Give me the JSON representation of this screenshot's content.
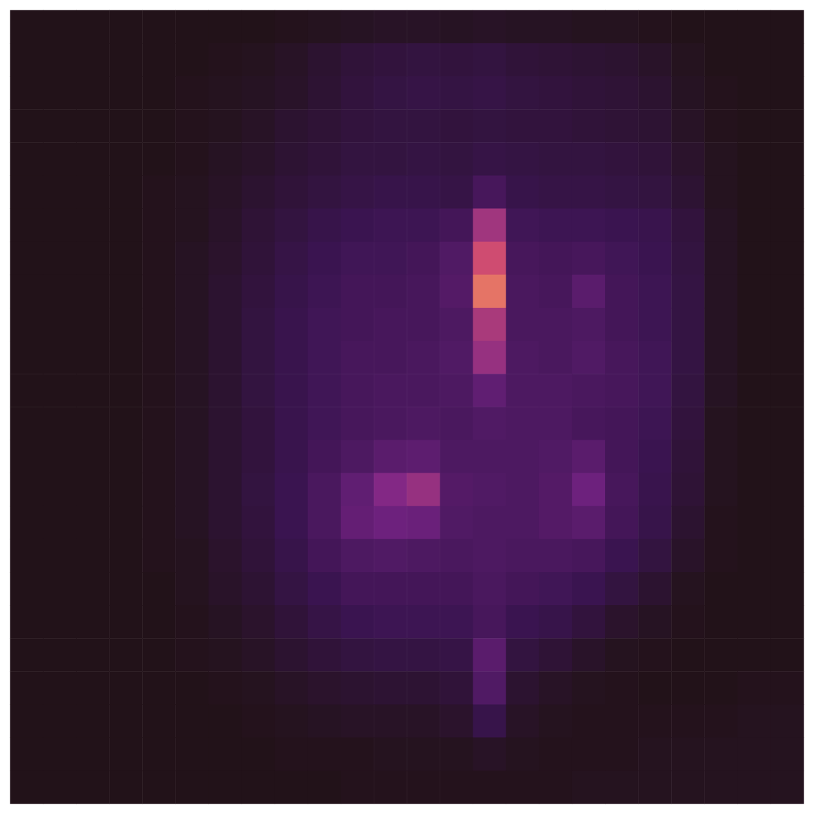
{
  "chart_data": {
    "type": "heatmap",
    "tick_labels": false,
    "zlim": [
      0,
      1
    ],
    "cells": [
      [
        0.03,
        0.03,
        0.03,
        0.03,
        0.03,
        0.03,
        0.03,
        0.03,
        0.04,
        0.05,
        0.06,
        0.07,
        0.07,
        0.06,
        0.07,
        0.06,
        0.06,
        0.05,
        0.05,
        0.04,
        0.03,
        0.03,
        0.03,
        0.03
      ],
      [
        0.03,
        0.03,
        0.03,
        0.03,
        0.03,
        0.03,
        0.04,
        0.05,
        0.07,
        0.1,
        0.13,
        0.14,
        0.15,
        0.14,
        0.15,
        0.13,
        0.12,
        0.11,
        0.1,
        0.08,
        0.05,
        0.03,
        0.03,
        0.03
      ],
      [
        0.03,
        0.03,
        0.03,
        0.03,
        0.03,
        0.04,
        0.05,
        0.06,
        0.08,
        0.11,
        0.14,
        0.16,
        0.17,
        0.16,
        0.17,
        0.15,
        0.14,
        0.13,
        0.12,
        0.1,
        0.06,
        0.04,
        0.03,
        0.03
      ],
      [
        0.03,
        0.03,
        0.03,
        0.03,
        0.03,
        0.04,
        0.05,
        0.07,
        0.1,
        0.12,
        0.14,
        0.15,
        0.15,
        0.14,
        0.15,
        0.14,
        0.14,
        0.13,
        0.12,
        0.11,
        0.07,
        0.04,
        0.03,
        0.03
      ],
      [
        0.03,
        0.03,
        0.03,
        0.03,
        0.03,
        0.04,
        0.06,
        0.08,
        0.11,
        0.13,
        0.15,
        0.15,
        0.16,
        0.15,
        0.17,
        0.16,
        0.15,
        0.15,
        0.14,
        0.13,
        0.09,
        0.05,
        0.03,
        0.03
      ],
      [
        0.03,
        0.03,
        0.03,
        0.03,
        0.04,
        0.05,
        0.07,
        0.1,
        0.13,
        0.15,
        0.17,
        0.18,
        0.18,
        0.17,
        0.24,
        0.18,
        0.17,
        0.17,
        0.16,
        0.15,
        0.11,
        0.05,
        0.03,
        0.03
      ],
      [
        0.03,
        0.03,
        0.03,
        0.03,
        0.04,
        0.05,
        0.08,
        0.12,
        0.15,
        0.18,
        0.2,
        0.21,
        0.21,
        0.23,
        0.48,
        0.22,
        0.21,
        0.21,
        0.2,
        0.19,
        0.14,
        0.06,
        0.03,
        0.03
      ],
      [
        0.03,
        0.03,
        0.03,
        0.03,
        0.04,
        0.06,
        0.09,
        0.13,
        0.17,
        0.2,
        0.22,
        0.22,
        0.23,
        0.27,
        0.58,
        0.24,
        0.23,
        0.24,
        0.22,
        0.2,
        0.15,
        0.06,
        0.03,
        0.03
      ],
      [
        0.03,
        0.03,
        0.03,
        0.03,
        0.04,
        0.06,
        0.1,
        0.14,
        0.18,
        0.21,
        0.23,
        0.23,
        0.24,
        0.28,
        0.68,
        0.25,
        0.24,
        0.3,
        0.23,
        0.21,
        0.16,
        0.06,
        0.03,
        0.03
      ],
      [
        0.03,
        0.03,
        0.03,
        0.03,
        0.04,
        0.06,
        0.1,
        0.15,
        0.19,
        0.22,
        0.23,
        0.24,
        0.24,
        0.26,
        0.5,
        0.25,
        0.25,
        0.26,
        0.23,
        0.21,
        0.16,
        0.06,
        0.03,
        0.03
      ],
      [
        0.03,
        0.03,
        0.03,
        0.03,
        0.04,
        0.06,
        0.1,
        0.15,
        0.19,
        0.22,
        0.24,
        0.24,
        0.25,
        0.27,
        0.46,
        0.26,
        0.25,
        0.27,
        0.24,
        0.22,
        0.16,
        0.06,
        0.03,
        0.03
      ],
      [
        0.03,
        0.03,
        0.03,
        0.03,
        0.04,
        0.06,
        0.1,
        0.15,
        0.19,
        0.22,
        0.24,
        0.25,
        0.25,
        0.26,
        0.32,
        0.26,
        0.26,
        0.25,
        0.24,
        0.22,
        0.15,
        0.06,
        0.03,
        0.03
      ],
      [
        0.03,
        0.03,
        0.03,
        0.03,
        0.04,
        0.06,
        0.1,
        0.14,
        0.19,
        0.22,
        0.24,
        0.25,
        0.26,
        0.25,
        0.27,
        0.26,
        0.26,
        0.24,
        0.23,
        0.21,
        0.14,
        0.05,
        0.03,
        0.03
      ],
      [
        0.03,
        0.03,
        0.03,
        0.03,
        0.04,
        0.06,
        0.1,
        0.14,
        0.19,
        0.23,
        0.26,
        0.3,
        0.31,
        0.26,
        0.26,
        0.26,
        0.27,
        0.3,
        0.23,
        0.2,
        0.13,
        0.05,
        0.03,
        0.03
      ],
      [
        0.03,
        0.03,
        0.03,
        0.03,
        0.04,
        0.06,
        0.1,
        0.15,
        0.2,
        0.25,
        0.32,
        0.42,
        0.46,
        0.28,
        0.27,
        0.26,
        0.28,
        0.36,
        0.24,
        0.19,
        0.12,
        0.05,
        0.03,
        0.03
      ],
      [
        0.03,
        0.03,
        0.03,
        0.03,
        0.04,
        0.06,
        0.1,
        0.14,
        0.2,
        0.25,
        0.33,
        0.36,
        0.35,
        0.27,
        0.26,
        0.26,
        0.28,
        0.3,
        0.23,
        0.18,
        0.1,
        0.04,
        0.03,
        0.03
      ],
      [
        0.03,
        0.03,
        0.03,
        0.03,
        0.04,
        0.05,
        0.09,
        0.13,
        0.18,
        0.23,
        0.26,
        0.27,
        0.26,
        0.25,
        0.26,
        0.25,
        0.25,
        0.24,
        0.2,
        0.15,
        0.08,
        0.04,
        0.03,
        0.03
      ],
      [
        0.03,
        0.03,
        0.03,
        0.03,
        0.03,
        0.05,
        0.08,
        0.11,
        0.16,
        0.2,
        0.23,
        0.23,
        0.23,
        0.23,
        0.25,
        0.23,
        0.22,
        0.2,
        0.15,
        0.1,
        0.05,
        0.03,
        0.03,
        0.03
      ],
      [
        0.03,
        0.03,
        0.03,
        0.03,
        0.03,
        0.04,
        0.06,
        0.09,
        0.13,
        0.17,
        0.2,
        0.21,
        0.21,
        0.21,
        0.24,
        0.2,
        0.18,
        0.14,
        0.09,
        0.06,
        0.04,
        0.03,
        0.03,
        0.03
      ],
      [
        0.03,
        0.03,
        0.03,
        0.03,
        0.03,
        0.04,
        0.05,
        0.07,
        0.1,
        0.13,
        0.15,
        0.16,
        0.16,
        0.17,
        0.3,
        0.15,
        0.12,
        0.08,
        0.05,
        0.04,
        0.03,
        0.03,
        0.03,
        0.03
      ],
      [
        0.03,
        0.03,
        0.03,
        0.03,
        0.03,
        0.03,
        0.04,
        0.05,
        0.07,
        0.09,
        0.1,
        0.11,
        0.11,
        0.13,
        0.27,
        0.1,
        0.07,
        0.05,
        0.04,
        0.03,
        0.03,
        0.03,
        0.04,
        0.04
      ],
      [
        0.03,
        0.03,
        0.03,
        0.03,
        0.03,
        0.03,
        0.03,
        0.04,
        0.05,
        0.06,
        0.07,
        0.07,
        0.07,
        0.09,
        0.18,
        0.07,
        0.05,
        0.04,
        0.04,
        0.04,
        0.04,
        0.04,
        0.05,
        0.05
      ],
      [
        0.03,
        0.03,
        0.03,
        0.03,
        0.03,
        0.03,
        0.03,
        0.03,
        0.04,
        0.04,
        0.04,
        0.05,
        0.05,
        0.05,
        0.07,
        0.05,
        0.04,
        0.04,
        0.04,
        0.05,
        0.05,
        0.05,
        0.05,
        0.05
      ],
      [
        0.03,
        0.03,
        0.03,
        0.03,
        0.03,
        0.03,
        0.03,
        0.03,
        0.03,
        0.03,
        0.04,
        0.04,
        0.04,
        0.04,
        0.04,
        0.04,
        0.04,
        0.05,
        0.05,
        0.05,
        0.05,
        0.05,
        0.05,
        0.05
      ]
    ]
  }
}
